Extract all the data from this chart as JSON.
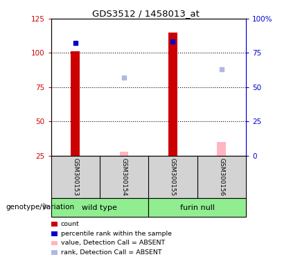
{
  "title": "GDS3512 / 1458013_at",
  "samples": [
    "GSM300153",
    "GSM300154",
    "GSM300155",
    "GSM300156"
  ],
  "count_values": [
    101,
    null,
    115,
    null
  ],
  "percentile_rank": [
    82,
    null,
    83,
    null
  ],
  "absent_value": [
    null,
    28,
    null,
    35
  ],
  "absent_rank": [
    null,
    57,
    null,
    63
  ],
  "left_ylim": [
    25,
    125
  ],
  "right_ylim": [
    0,
    100
  ],
  "left_yticks": [
    25,
    50,
    75,
    100,
    125
  ],
  "right_yticks": [
    0,
    25,
    50,
    75,
    100
  ],
  "right_yticklabels": [
    "0",
    "25",
    "50",
    "75",
    "100%"
  ],
  "left_color": "#cc0000",
  "right_color": "#0000cc",
  "count_color": "#cc0000",
  "percentile_color": "#0000cc",
  "absent_value_color": "#ffb6c1",
  "absent_rank_color": "#b0b8e8",
  "bar_width": 0.18,
  "grid_dotted_at": [
    50,
    75,
    100
  ],
  "plot_bg": "#ffffff",
  "label_area_bg": "#d3d3d3",
  "group_color": "#90EE90",
  "genotype_label": "genotype/variation",
  "group_bounds": [
    [
      -0.5,
      1.5,
      "wild type"
    ],
    [
      1.5,
      3.5,
      "furin null"
    ]
  ],
  "legend_items": [
    {
      "color": "#cc0000",
      "label": "count"
    },
    {
      "color": "#0000cc",
      "label": "percentile rank within the sample"
    },
    {
      "color": "#ffb6c1",
      "label": "value, Detection Call = ABSENT"
    },
    {
      "color": "#b0b8e8",
      "label": "rank, Detection Call = ABSENT"
    }
  ]
}
